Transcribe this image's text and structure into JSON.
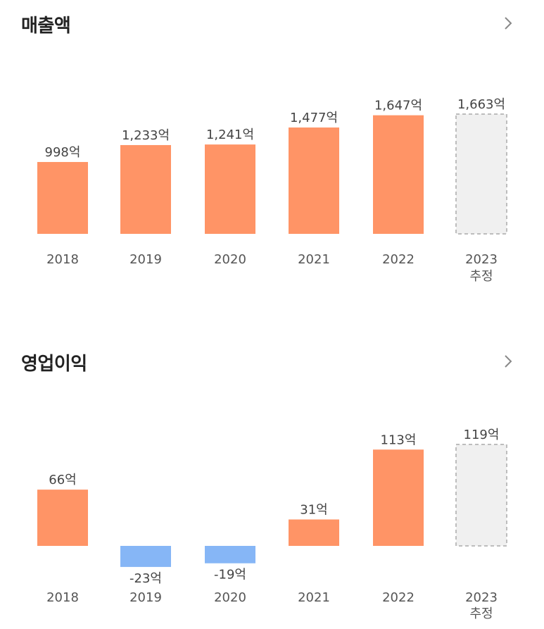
{
  "charts": [
    {
      "title": "매출액",
      "chevron": "chevron-right-icon"
    },
    {
      "title": "영업이익",
      "chevron": "chevron-right-icon"
    }
  ],
  "colors": {
    "positive": "#FF9466",
    "negative": "#86B6F6",
    "estimate_fill": "#F0F0F0",
    "estimate_border": "#BDBDBD",
    "text": "#555555"
  },
  "chart_data": [
    {
      "type": "bar",
      "title": "매출액",
      "categories": [
        "2018",
        "2019",
        "2020",
        "2021",
        "2022",
        "2023"
      ],
      "category_sublabels": [
        "",
        "",
        "",
        "",
        "",
        "추정"
      ],
      "values": [
        998,
        1233,
        1241,
        1477,
        1647,
        1663
      ],
      "value_labels": [
        "998억",
        "1,233억",
        "1,241억",
        "1,477억",
        "1,647억",
        "1,663억"
      ],
      "estimated": [
        false,
        false,
        false,
        false,
        false,
        true
      ],
      "unit": "억",
      "ylim": [
        0,
        1700
      ],
      "grid": false
    },
    {
      "type": "bar",
      "title": "영업이익",
      "categories": [
        "2018",
        "2019",
        "2020",
        "2021",
        "2022",
        "2023"
      ],
      "category_sublabels": [
        "",
        "",
        "",
        "",
        "",
        "추정"
      ],
      "values": [
        66,
        -23,
        -19,
        31,
        113,
        119
      ],
      "value_labels": [
        "66억",
        "-23억",
        "-19억",
        "31억",
        "113억",
        "119억"
      ],
      "estimated": [
        false,
        false,
        false,
        false,
        false,
        true
      ],
      "unit": "억",
      "ylim": [
        -25,
        120
      ],
      "grid": false
    }
  ]
}
